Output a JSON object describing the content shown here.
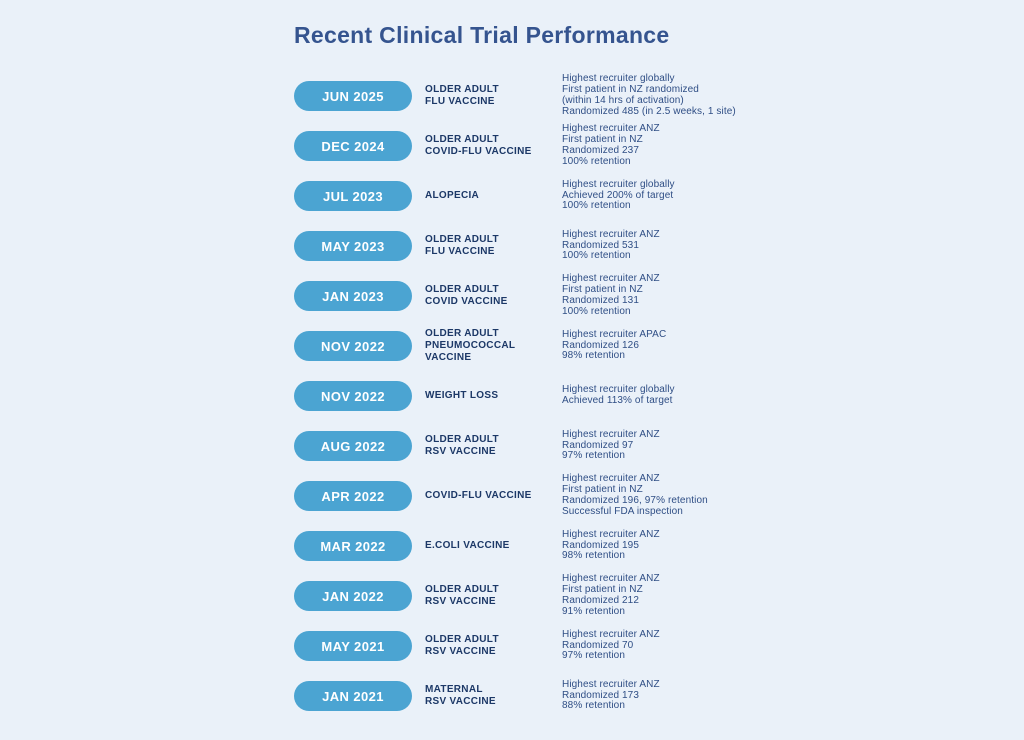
{
  "page": {
    "title": "Recent Clinical Trial Performance",
    "background_color": "#eaf1f9"
  },
  "colors": {
    "pill_background": "#4ba4d2",
    "pill_text": "#ffffff",
    "title_text": "#35548f",
    "trial_name_text": "#1c3867",
    "details_text": "#2f4e85"
  },
  "rows": [
    {
      "date": "JUN 2025",
      "name": "OLDER ADULT\nFLU VACCINE",
      "details": "Highest recruiter globally\nFirst patient in NZ randomized\n(within 14 hrs of activation)\nRandomized 485 (in 2.5 weeks, 1 site)"
    },
    {
      "date": "DEC 2024",
      "name": "OLDER ADULT\nCOVID-FLU VACCINE",
      "details": "Highest recruiter ANZ\nFirst patient in NZ\nRandomized 237\n100% retention"
    },
    {
      "date": "JUL 2023",
      "name": "ALOPECIA",
      "details": "Highest recruiter globally\nAchieved 200% of target\n100% retention"
    },
    {
      "date": "MAY 2023",
      "name": "OLDER ADULT\nFLU VACCINE",
      "details": "Highest recruiter ANZ\nRandomized 531\n100% retention"
    },
    {
      "date": "JAN 2023",
      "name": "OLDER ADULT\nCOVID VACCINE",
      "details": "Highest recruiter ANZ\nFirst patient in NZ\nRandomized 131\n100% retention"
    },
    {
      "date": "NOV 2022",
      "name": "OLDER ADULT\nPNEUMOCOCCAL\nVACCINE",
      "details": "Highest recruiter APAC\nRandomized 126\n98% retention"
    },
    {
      "date": "NOV 2022",
      "name": "WEIGHT LOSS",
      "details": "Highest recruiter globally\nAchieved 113% of target"
    },
    {
      "date": "AUG 2022",
      "name": "OLDER ADULT\nRSV VACCINE",
      "details": "Highest recruiter ANZ\nRandomized 97\n97% retention"
    },
    {
      "date": "APR 2022",
      "name": "COVID-FLU VACCINE",
      "details": "Highest recruiter ANZ\nFirst patient in NZ\nRandomized 196, 97% retention\nSuccessful FDA inspection"
    },
    {
      "date": "MAR 2022",
      "name": "E.COLI VACCINE",
      "details": "Highest recruiter ANZ\nRandomized 195\n98% retention"
    },
    {
      "date": "JAN 2022",
      "name": "OLDER ADULT\nRSV VACCINE",
      "details": "Highest recruiter ANZ\nFirst patient in NZ\nRandomized 212\n91% retention"
    },
    {
      "date": "MAY 2021",
      "name": "OLDER ADULT\nRSV VACCINE",
      "details": "Highest recruiter ANZ\nRandomized 70\n97% retention"
    },
    {
      "date": "JAN 2021",
      "name": "MATERNAL\nRSV VACCINE",
      "details": "Highest recruiter ANZ\nRandomized 173\n88% retention"
    }
  ]
}
